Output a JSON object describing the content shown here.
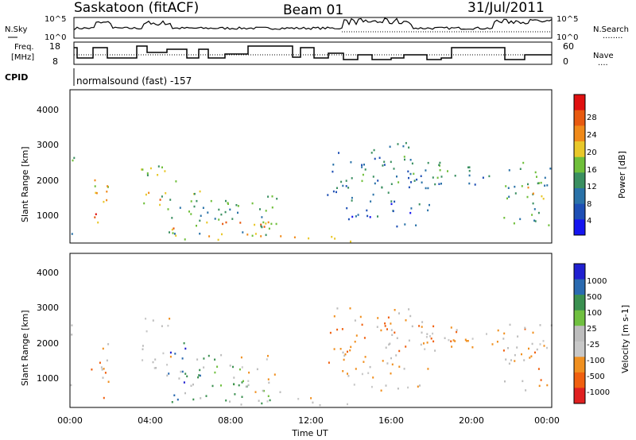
{
  "header": {
    "station": "Saskatoon (fitACF)",
    "beam": "Beam 01",
    "date": "31/Jul/2011"
  },
  "noise_panel": {
    "left_label": "N.Sky",
    "right_label": "N.Search",
    "right_dots": "........",
    "left_ticks": [
      "10^5",
      "10^0"
    ],
    "right_ticks": [
      "10^5",
      "10^0"
    ]
  },
  "freq_panel": {
    "left_label_line1": "Freq.",
    "left_label_line2": "[MHz]",
    "right_label": "Nave",
    "right_dots": "....",
    "left_ticks": [
      "18",
      "8"
    ],
    "right_ticks": [
      "60",
      "0"
    ]
  },
  "cpid": {
    "label": "CPID",
    "value": "normalsound (fast) -157"
  },
  "colors": {
    "power": [
      "#1515f0",
      "#1e4fb5",
      "#2a72a8",
      "#3a8f60",
      "#6fbf3a",
      "#e9c82a",
      "#f08a1a",
      "#e85a10",
      "#e01010"
    ],
    "velocity": [
      "#2020d0",
      "#2a6ab0",
      "#3a9050",
      "#70c040",
      "#bdbdbd",
      "#c8c8c8",
      "#f09020",
      "#f06010",
      "#e02020"
    ]
  },
  "chart_data": [
    {
      "type": "heatmap",
      "name_panel": "power",
      "ylabel": "Slant Range [km]",
      "yticks": [
        "1000",
        "2000",
        "3000",
        "4000"
      ],
      "ylim": [
        200,
        4600
      ],
      "xlim_hours": [
        0,
        24
      ],
      "colorbar": {
        "label": "Power [dB]",
        "ticks": [
          "4",
          "8",
          "12",
          "16",
          "20",
          "24",
          "28"
        ],
        "range": [
          0,
          32
        ]
      }
    },
    {
      "type": "heatmap",
      "name_panel": "velocity",
      "ylabel": "Slant Range [km]",
      "yticks": [
        "1000",
        "2000",
        "3000",
        "4000"
      ],
      "ylim": [
        200,
        4600
      ],
      "xlim_hours": [
        0,
        24
      ],
      "xlabel": "Time UT",
      "xticks": [
        "00:00",
        "04:00",
        "08:00",
        "12:00",
        "16:00",
        "20:00",
        "00:00"
      ],
      "colorbar": {
        "label": "Velocity [m s-1]",
        "ticks": [
          "1000",
          "500",
          "100",
          "25",
          "-25",
          "-100",
          "-500",
          "-1000"
        ]
      }
    }
  ],
  "scatter_regions": [
    {
      "t0": 0.0,
      "t1": 0.2,
      "r0": 300,
      "r1": 2700,
      "p": 12,
      "v": "g"
    },
    {
      "t0": 1.0,
      "t1": 1.9,
      "r0": 500,
      "r1": 2200,
      "p": 20,
      "v": "o"
    },
    {
      "t0": 1.2,
      "t1": 1.7,
      "r0": 900,
      "r1": 1400,
      "p": 26,
      "v": "o"
    },
    {
      "t0": 3.5,
      "t1": 5.0,
      "r0": 1300,
      "r1": 2800,
      "p": 16,
      "v": "n"
    },
    {
      "t0": 3.8,
      "t1": 4.6,
      "r0": 1300,
      "r1": 1700,
      "p": 24,
      "v": "o"
    },
    {
      "t0": 4.8,
      "t1": 6.5,
      "r0": 400,
      "r1": 2100,
      "p": 14,
      "v": "b"
    },
    {
      "t0": 5.0,
      "t1": 10.5,
      "r0": 300,
      "r1": 900,
      "p": 22,
      "v": "l"
    },
    {
      "t0": 6.0,
      "t1": 9.0,
      "r0": 800,
      "r1": 1800,
      "p": 12,
      "v": "l"
    },
    {
      "t0": 8.5,
      "t1": 10.3,
      "r0": 400,
      "r1": 1700,
      "p": 12,
      "v": "n"
    },
    {
      "t0": 11.0,
      "t1": 14.5,
      "r0": 250,
      "r1": 500,
      "p": 22,
      "v": "n"
    },
    {
      "t0": 12.8,
      "t1": 17.0,
      "r0": 1400,
      "r1": 3100,
      "p": 10,
      "v": "o"
    },
    {
      "t0": 13.5,
      "t1": 18.0,
      "r0": 700,
      "r1": 1400,
      "p": 8,
      "v": "n"
    },
    {
      "t0": 15.0,
      "t1": 20.0,
      "r0": 1800,
      "r1": 2700,
      "p": 10,
      "v": "o"
    },
    {
      "t0": 17.0,
      "t1": 19.0,
      "r0": 1800,
      "r1": 2400,
      "p": 12,
      "v": "g"
    },
    {
      "t0": 19.8,
      "t1": 21.5,
      "r0": 1900,
      "r1": 2500,
      "p": 8,
      "v": "n"
    },
    {
      "t0": 21.5,
      "t1": 24.0,
      "r0": 700,
      "r1": 2600,
      "p": 12,
      "v": "o"
    },
    {
      "t0": 22.5,
      "t1": 23.8,
      "r0": 1500,
      "r1": 2200,
      "p": 18,
      "v": "n"
    }
  ]
}
